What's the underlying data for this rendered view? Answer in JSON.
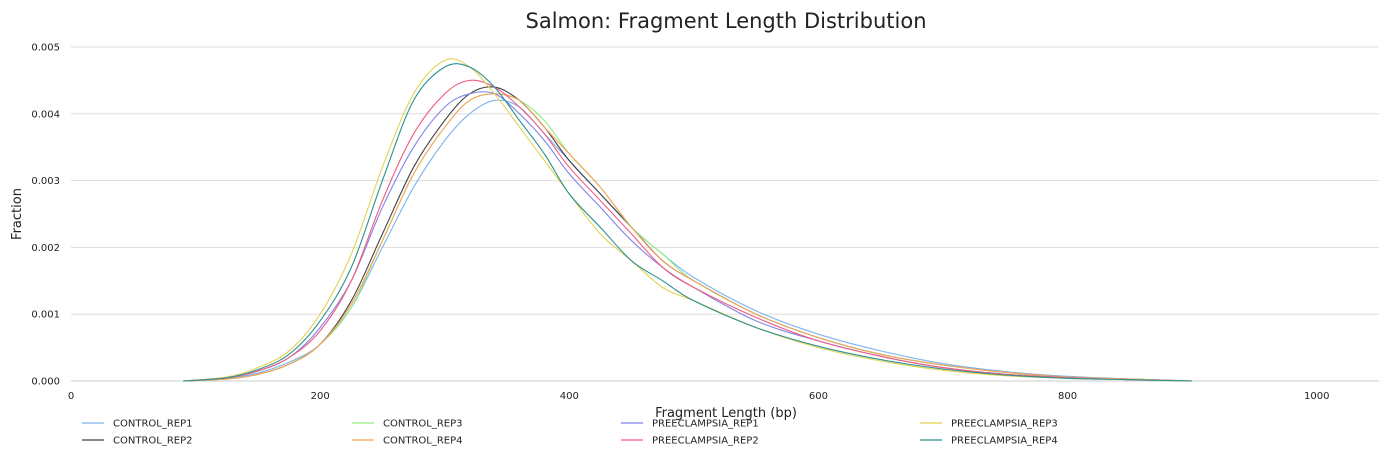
{
  "chart_data": {
    "type": "line",
    "title": "Salmon: Fragment Length Distribution",
    "xlabel": "Fragment Length (bp)",
    "ylabel": "Fraction",
    "xlim": [
      0,
      1050
    ],
    "ylim": [
      0,
      0.005
    ],
    "x_ticks": [
      0,
      200,
      400,
      600,
      800,
      1000
    ],
    "y_ticks": [
      0,
      0.001,
      0.002,
      0.003,
      0.004,
      0.005
    ],
    "x_tick_labels": [
      "0",
      "200",
      "400",
      "600",
      "800",
      "1000"
    ],
    "y_tick_labels": [
      "0.000",
      "0.001",
      "0.002",
      "0.003",
      "0.004",
      "0.005"
    ],
    "grid": "horizontal",
    "legend_position": "bottom",
    "series": [
      {
        "name": "CONTROL_REP1",
        "color": "#7cb5ec",
        "x": [
          90,
          125,
          150,
          175,
          200,
          225,
          250,
          275,
          300,
          320,
          340,
          360,
          380,
          400,
          425,
          450,
          475,
          500,
          550,
          600,
          650,
          700,
          750,
          800,
          850,
          900
        ],
        "y": [
          0,
          4e-05,
          0.00012,
          0.00028,
          0.00055,
          0.0011,
          0.002,
          0.0029,
          0.0036,
          0.004,
          0.0042,
          0.0041,
          0.0037,
          0.0033,
          0.0028,
          0.0023,
          0.0019,
          0.00155,
          0.00105,
          0.0007,
          0.00045,
          0.00026,
          0.00014,
          7e-05,
          3e-05,
          0
        ]
      },
      {
        "name": "CONTROL_REP2",
        "color": "#434348",
        "x": [
          90,
          125,
          150,
          175,
          200,
          225,
          250,
          275,
          300,
          320,
          340,
          360,
          380,
          400,
          425,
          450,
          475,
          500,
          550,
          600,
          650,
          700,
          750,
          800,
          850,
          900
        ],
        "y": [
          0,
          3e-05,
          0.0001,
          0.00025,
          0.00055,
          0.0012,
          0.0022,
          0.0032,
          0.0039,
          0.0043,
          0.0044,
          0.0042,
          0.0038,
          0.0033,
          0.0028,
          0.0023,
          0.0018,
          0.0015,
          0.001,
          0.00065,
          0.0004,
          0.00024,
          0.00013,
          6e-05,
          3e-05,
          0
        ]
      },
      {
        "name": "CONTROL_REP3",
        "color": "#90ed7d",
        "x": [
          90,
          125,
          150,
          175,
          200,
          225,
          250,
          275,
          300,
          320,
          340,
          360,
          380,
          400,
          425,
          450,
          475,
          500,
          550,
          600,
          650,
          700,
          750,
          800,
          850,
          900
        ],
        "y": [
          0,
          3e-05,
          0.0001,
          0.00025,
          0.00055,
          0.0011,
          0.0021,
          0.0031,
          0.0038,
          0.0042,
          0.0043,
          0.0042,
          0.0039,
          0.0034,
          0.0029,
          0.0023,
          0.0019,
          0.0015,
          0.001,
          0.00065,
          0.0004,
          0.00024,
          0.00013,
          6e-05,
          3e-05,
          0
        ]
      },
      {
        "name": "CONTROL_REP4",
        "color": "#f7a35c",
        "x": [
          90,
          125,
          150,
          175,
          200,
          225,
          250,
          275,
          300,
          320,
          340,
          360,
          380,
          400,
          425,
          450,
          475,
          500,
          550,
          600,
          650,
          700,
          750,
          800,
          850,
          900
        ],
        "y": [
          0,
          3e-05,
          0.0001,
          0.00025,
          0.00055,
          0.00115,
          0.0021,
          0.0031,
          0.0038,
          0.0042,
          0.0043,
          0.0042,
          0.0038,
          0.0034,
          0.0029,
          0.0023,
          0.0018,
          0.0015,
          0.001,
          0.00065,
          0.0004,
          0.00024,
          0.00013,
          6e-05,
          3e-05,
          0
        ]
      },
      {
        "name": "PREECLAMPSIA_REP1",
        "color": "#8085e9",
        "x": [
          90,
          125,
          150,
          175,
          200,
          225,
          250,
          275,
          300,
          320,
          340,
          360,
          380,
          400,
          425,
          450,
          475,
          500,
          550,
          600,
          650,
          700,
          750,
          800,
          850,
          900
        ],
        "y": [
          0,
          5e-05,
          0.00015,
          0.00035,
          0.0008,
          0.0015,
          0.0026,
          0.0035,
          0.0041,
          0.0043,
          0.0043,
          0.004,
          0.0036,
          0.0031,
          0.0026,
          0.0021,
          0.0017,
          0.0014,
          0.0009,
          0.0006,
          0.00037,
          0.0002,
          0.0001,
          5e-05,
          2e-05,
          0
        ]
      },
      {
        "name": "PREECLAMPSIA_REP2",
        "color": "#f15c80",
        "x": [
          90,
          125,
          150,
          175,
          200,
          225,
          250,
          275,
          300,
          320,
          340,
          360,
          380,
          400,
          425,
          450,
          475,
          500,
          550,
          600,
          650,
          700,
          750,
          800,
          850,
          900
        ],
        "y": [
          0,
          5e-05,
          0.00015,
          0.00035,
          0.00075,
          0.0015,
          0.0027,
          0.0037,
          0.0043,
          0.0045,
          0.0044,
          0.0041,
          0.0037,
          0.0032,
          0.0027,
          0.0022,
          0.0017,
          0.0014,
          0.00095,
          0.0006,
          0.00037,
          0.0002,
          0.0001,
          5e-05,
          2e-05,
          0
        ]
      },
      {
        "name": "PREECLAMPSIA_REP3",
        "color": "#e4d354",
        "x": [
          90,
          125,
          150,
          175,
          200,
          225,
          250,
          275,
          300,
          320,
          340,
          360,
          380,
          400,
          425,
          450,
          475,
          500,
          550,
          600,
          650,
          700,
          750,
          800,
          850,
          900
        ],
        "y": [
          0,
          6e-05,
          0.0002,
          0.00045,
          0.001,
          0.0019,
          0.0032,
          0.0043,
          0.0048,
          0.0047,
          0.0043,
          0.0038,
          0.0033,
          0.0028,
          0.0022,
          0.0018,
          0.0014,
          0.0012,
          0.0008,
          0.0005,
          0.0003,
          0.00016,
          8e-05,
          4e-05,
          2e-05,
          0
        ]
      },
      {
        "name": "PREECLAMPSIA_REP4",
        "color": "#2b908f",
        "x": [
          90,
          125,
          150,
          175,
          200,
          225,
          250,
          275,
          300,
          320,
          340,
          360,
          380,
          400,
          425,
          450,
          475,
          500,
          550,
          600,
          650,
          700,
          750,
          800,
          850,
          900
        ],
        "y": [
          0,
          5e-05,
          0.00017,
          0.0004,
          0.0009,
          0.0017,
          0.003,
          0.0042,
          0.0047,
          0.0047,
          0.0044,
          0.0039,
          0.0034,
          0.0028,
          0.0023,
          0.0018,
          0.0015,
          0.0012,
          0.0008,
          0.00052,
          0.00032,
          0.00018,
          9e-05,
          4e-05,
          2e-05,
          0
        ]
      }
    ]
  }
}
